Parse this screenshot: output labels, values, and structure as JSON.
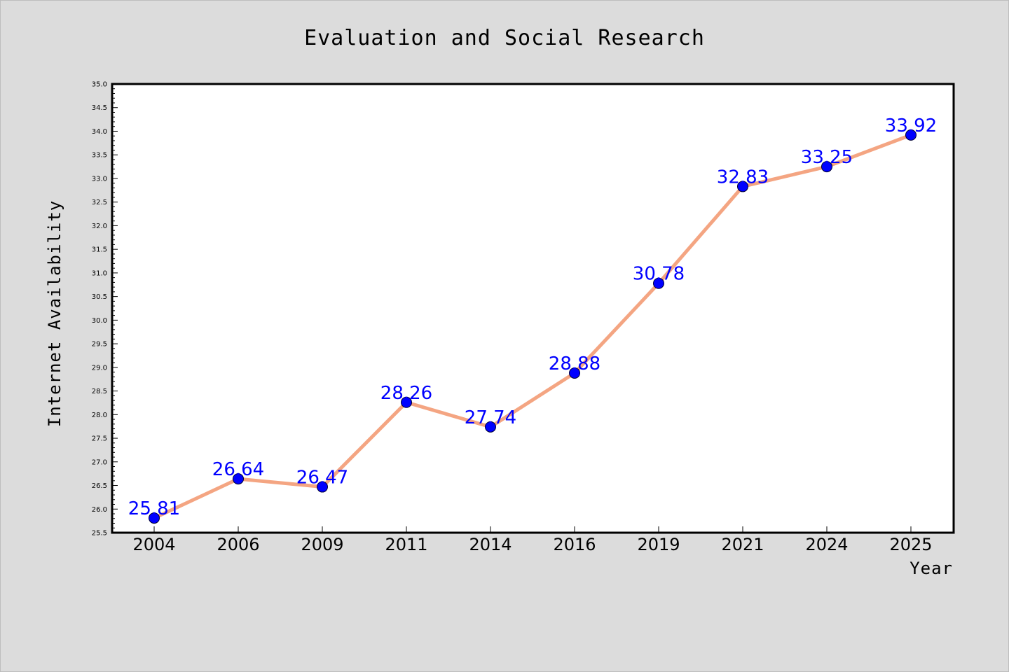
{
  "colors": {
    "background": "#dcdcdc",
    "plot_background": "#ffffff",
    "line": "#f4a582",
    "marker": "#0000ff",
    "data_label": "#0000ff"
  },
  "chart_data": {
    "type": "line",
    "title": "Evaluation and Social Research",
    "xlabel": "Year",
    "ylabel": "Internet Availability",
    "categories": [
      "2004",
      "2006",
      "2009",
      "2011",
      "2014",
      "2016",
      "2019",
      "2021",
      "2024",
      "2025"
    ],
    "series": [
      {
        "values": [
          25.81,
          26.64,
          26.47,
          28.26,
          27.74,
          28.88,
          30.78,
          32.83,
          33.25,
          33.92
        ],
        "data_labels": [
          "25.81",
          "26.64",
          "26.47",
          "28.26",
          "27.74",
          "28.88",
          "30.78",
          "32.83",
          "33.25",
          "33.92"
        ]
      }
    ],
    "ylim": [
      25.5,
      35.0
    ],
    "yticks": [
      "25.5",
      "26.0",
      "26.5",
      "27.0",
      "27.5",
      "28.0",
      "28.5",
      "29.0",
      "29.5",
      "30.0",
      "30.5",
      "31.0",
      "31.5",
      "32.0",
      "32.5",
      "33.0",
      "33.5",
      "34.0",
      "34.5",
      "35.0"
    ],
    "grid": false,
    "legend": "none"
  }
}
